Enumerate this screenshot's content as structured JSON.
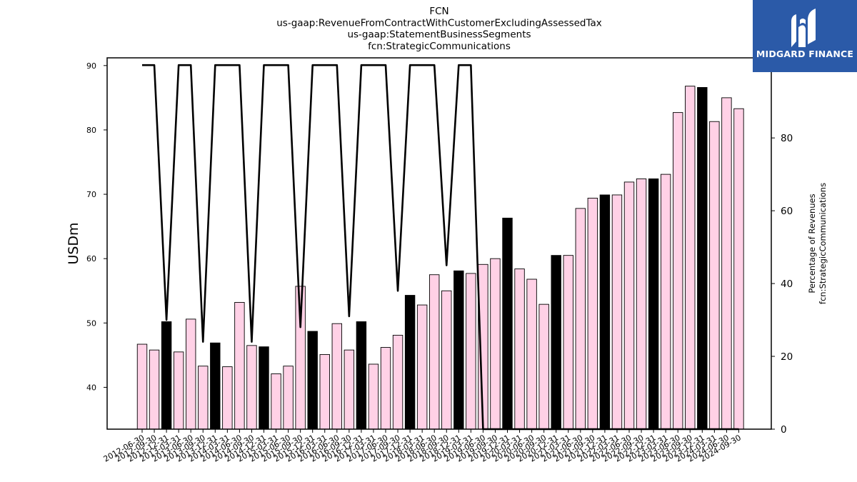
{
  "brand": {
    "name": "MIDGARD FINANCE"
  },
  "chart_data": {
    "type": "bar",
    "title_lines": [
      "FCN",
      "us-gaap:RevenueFromContractWithCustomerExcludingAssessedTax",
      "us-gaap:StatementBusinessSegments",
      "fcn:StrategicCommunications"
    ],
    "ylabel": "USDm",
    "ylabel_right": [
      "Percentage of Revenues",
      "fcn:StrategicCommunications"
    ],
    "ylim": [
      33.5,
      91.2
    ],
    "yticks": [
      40,
      50,
      60,
      70,
      80,
      90
    ],
    "ylim_right": [
      0,
      102
    ],
    "yticks_right": [
      0,
      20,
      40,
      60,
      80,
      100
    ],
    "colors": {
      "bar_default": "#ffd1e6",
      "bar_highlight": "#000000",
      "line": "#000000",
      "logo_bg": "#2b5aa8"
    },
    "categories": [
      "2012-06-30",
      "2012-09-30",
      "2012-12-31",
      "2013-03-31",
      "2013-06-30",
      "2013-09-30",
      "2013-12-31",
      "2014-03-31",
      "2014-06-30",
      "2014-09-30",
      "2014-12-31",
      "2015-03-31",
      "2015-06-30",
      "2015-09-30",
      "2015-12-31",
      "2016-03-31",
      "2016-06-30",
      "2016-09-30",
      "2016-12-31",
      "2017-03-31",
      "2017-06-30",
      "2017-09-30",
      "2017-12-31",
      "2018-03-31",
      "2018-06-30",
      "2018-09-30",
      "2018-12-31",
      "2019-03-31",
      "2019-06-30",
      "2019-09-30",
      "2019-12-31",
      "2020-03-31",
      "2020-06-30",
      "2020-09-30",
      "2020-12-31",
      "2021-03-31",
      "2021-06-30",
      "2021-09-30",
      "2021-12-31",
      "2022-03-31",
      "2022-06-30",
      "2022-09-30",
      "2022-12-31",
      "2023-03-31",
      "2023-06-30",
      "2023-09-30",
      "2023-12-31",
      "2024-03-31",
      "2024-06-30",
      "2024-09-30"
    ],
    "visible_xticks": [
      "2012-06-30",
      "2012-09-30",
      "2012-12-31",
      "2013-03-31",
      "2013-06-30",
      "2013-09-30",
      "2013-12-31",
      "2014-03-31",
      "2014-06-30",
      "2014-09-30",
      "2014-12-31",
      "2015-03-31",
      "2015-06-30",
      "2015-09-30",
      "2015-12-31",
      "2016-03-31",
      "2016-06-30",
      "2016-09-30",
      "2016-12-31",
      "2017-03-31",
      "2017-06-30",
      "2017-09-30",
      "2017-12-31",
      "2018-03-31",
      "2018-06-30",
      "2018-09-30",
      "2018-12-31",
      "2019-03-31",
      "2019-06-30",
      "2019-09-30",
      "2019-12-31",
      "2020-03-31",
      "2020-06-30",
      "2020-09-30",
      "2020-12-31",
      "2021-03-31",
      "2021-06-30",
      "2021-09-30",
      "2021-12-31",
      "2022-03-31",
      "2022-06-30",
      "2022-09-30",
      "2022-12-31",
      "2023-03-31",
      "2023-06-30",
      "2023-09-30",
      "2023-12-31",
      "2024-03-31",
      "2024-06-30",
      "2024-09-30"
    ],
    "series": [
      {
        "values": [
          46.7,
          45.8,
          50.2,
          45.5,
          50.6,
          43.3,
          46.9,
          43.2,
          53.2,
          46.5,
          46.3,
          42.1,
          43.3,
          55.7,
          48.7,
          45.1,
          49.9,
          45.8,
          50.2,
          43.6,
          46.2,
          48.1,
          54.3,
          52.8,
          57.5,
          55.0,
          58.1,
          57.7,
          59.1,
          60.0,
          66.3,
          58.4,
          56.8,
          52.9,
          60.5,
          60.5,
          67.8,
          69.4,
          69.9,
          69.9,
          71.9,
          72.4,
          72.4,
          73.1,
          82.7,
          86.8,
          86.6,
          81.3,
          85.0,
          83.3
        ],
        "highlight": [
          false,
          false,
          true,
          false,
          false,
          false,
          true,
          false,
          false,
          false,
          true,
          false,
          false,
          false,
          true,
          false,
          false,
          false,
          true,
          false,
          false,
          false,
          true,
          false,
          false,
          false,
          true,
          false,
          false,
          false,
          true,
          false,
          false,
          false,
          true,
          false,
          false,
          false,
          true,
          false,
          false,
          false,
          true,
          false,
          false,
          false,
          true,
          false,
          false,
          false
        ]
      },
      {
        "axis": "right",
        "type": "line",
        "values": [
          100,
          100,
          30,
          100,
          100,
          24,
          100,
          100,
          100,
          24,
          100,
          100,
          100,
          28,
          100,
          100,
          100,
          31,
          100,
          100,
          100,
          38,
          100,
          100,
          100,
          45,
          100,
          100,
          0,
          0,
          0,
          0,
          0,
          0,
          0,
          0,
          0,
          0,
          0,
          0,
          0,
          0,
          0,
          0,
          0,
          0,
          0,
          0,
          0,
          0
        ]
      }
    ]
  }
}
